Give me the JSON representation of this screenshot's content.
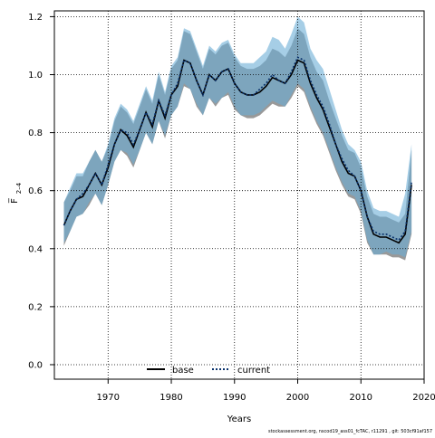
{
  "chart_data": {
    "type": "line",
    "xlabel": "Years",
    "ylabel": "F̅",
    "ylabel_sub": "2–4",
    "xlim": [
      1961.5,
      2020
    ],
    "ylim": [
      -0.05,
      1.22
    ],
    "x_ticks": [
      1970,
      1980,
      1990,
      2000,
      2010,
      2020
    ],
    "y_ticks": [
      0.0,
      0.2,
      0.4,
      0.6,
      0.8,
      1.0,
      1.2
    ],
    "x_tick_labels": [
      "1970",
      "1980",
      "1990",
      "2000",
      "2010",
      "2020"
    ],
    "y_tick_labels": [
      "0.0",
      "0.2",
      "0.4",
      "0.6",
      "0.8",
      "1.0",
      "1.2"
    ],
    "grid": true,
    "legend_position": "bottom-center",
    "footnote": "stockassessment.org, nscod19_ass01_fcTAC, r11291 , git: 503cf91af157",
    "x": [
      1963,
      1964,
      1965,
      1966,
      1967,
      1968,
      1969,
      1970,
      1971,
      1972,
      1973,
      1974,
      1975,
      1976,
      1977,
      1978,
      1979,
      1980,
      1981,
      1982,
      1983,
      1984,
      1985,
      1986,
      1987,
      1988,
      1989,
      1990,
      1991,
      1992,
      1993,
      1994,
      1995,
      1996,
      1997,
      1998,
      1999,
      2000,
      2001,
      2002,
      2003,
      2004,
      2005,
      2006,
      2007,
      2008,
      2009,
      2010,
      2011,
      2012,
      2013,
      2014,
      2015,
      2016,
      2017,
      2018
    ],
    "series": [
      {
        "name": "base",
        "color": "#000000",
        "band_color": "#808080",
        "style": "solid",
        "values": [
          0.48,
          0.53,
          0.57,
          0.58,
          0.62,
          0.66,
          0.62,
          0.68,
          0.76,
          0.81,
          0.79,
          0.75,
          0.81,
          0.87,
          0.82,
          0.91,
          0.85,
          0.93,
          0.96,
          1.05,
          1.04,
          0.98,
          0.93,
          1.0,
          0.98,
          1.01,
          1.02,
          0.97,
          0.94,
          0.93,
          0.93,
          0.94,
          0.96,
          0.99,
          0.98,
          0.97,
          1.0,
          1.05,
          1.04,
          0.97,
          0.92,
          0.88,
          0.82,
          0.76,
          0.7,
          0.66,
          0.65,
          0.6,
          0.51,
          0.45,
          0.44,
          0.44,
          0.43,
          0.42,
          0.45,
          0.62
        ],
        "lower": [
          0.41,
          0.46,
          0.51,
          0.52,
          0.55,
          0.59,
          0.55,
          0.62,
          0.7,
          0.74,
          0.72,
          0.68,
          0.74,
          0.8,
          0.76,
          0.84,
          0.78,
          0.86,
          0.89,
          0.96,
          0.95,
          0.89,
          0.86,
          0.92,
          0.89,
          0.92,
          0.93,
          0.88,
          0.86,
          0.85,
          0.85,
          0.86,
          0.88,
          0.9,
          0.89,
          0.89,
          0.92,
          0.96,
          0.94,
          0.88,
          0.83,
          0.79,
          0.73,
          0.67,
          0.62,
          0.58,
          0.57,
          0.52,
          0.42,
          0.38,
          0.38,
          0.38,
          0.37,
          0.37,
          0.36,
          0.45
        ],
        "upper": [
          0.56,
          0.6,
          0.65,
          0.65,
          0.7,
          0.74,
          0.7,
          0.75,
          0.84,
          0.89,
          0.87,
          0.83,
          0.89,
          0.95,
          0.9,
          1.0,
          0.93,
          1.02,
          1.05,
          1.15,
          1.14,
          1.08,
          1.02,
          1.09,
          1.07,
          1.1,
          1.11,
          1.06,
          1.03,
          1.02,
          1.02,
          1.03,
          1.05,
          1.09,
          1.08,
          1.06,
          1.1,
          1.16,
          1.14,
          1.06,
          1.01,
          0.98,
          0.91,
          0.85,
          0.79,
          0.74,
          0.73,
          0.68,
          0.58,
          0.52,
          0.51,
          0.51,
          0.5,
          0.49,
          0.52,
          0.74
        ]
      },
      {
        "name": "current",
        "color": "#08306b",
        "band_color": "#6baed6",
        "style": "dotted",
        "values": [
          0.48,
          0.53,
          0.57,
          0.59,
          0.62,
          0.66,
          0.62,
          0.69,
          0.76,
          0.81,
          0.8,
          0.76,
          0.81,
          0.87,
          0.83,
          0.91,
          0.86,
          0.93,
          0.97,
          1.05,
          1.04,
          0.98,
          0.93,
          1.0,
          0.98,
          1.01,
          1.02,
          0.97,
          0.94,
          0.93,
          0.93,
          0.95,
          0.97,
          1.0,
          0.98,
          0.97,
          1.01,
          1.06,
          1.05,
          0.98,
          0.93,
          0.89,
          0.83,
          0.76,
          0.71,
          0.67,
          0.65,
          0.6,
          0.51,
          0.46,
          0.45,
          0.45,
          0.44,
          0.43,
          0.46,
          0.63
        ],
        "lower": [
          0.42,
          0.46,
          0.51,
          0.52,
          0.56,
          0.59,
          0.55,
          0.62,
          0.7,
          0.74,
          0.73,
          0.69,
          0.74,
          0.8,
          0.76,
          0.84,
          0.79,
          0.86,
          0.89,
          0.97,
          0.95,
          0.9,
          0.86,
          0.92,
          0.9,
          0.92,
          0.94,
          0.89,
          0.86,
          0.86,
          0.86,
          0.87,
          0.89,
          0.91,
          0.9,
          0.89,
          0.93,
          0.97,
          0.95,
          0.89,
          0.84,
          0.8,
          0.74,
          0.68,
          0.63,
          0.59,
          0.58,
          0.53,
          0.43,
          0.38,
          0.38,
          0.39,
          0.38,
          0.38,
          0.37,
          0.46
        ],
        "upper": [
          0.56,
          0.61,
          0.66,
          0.66,
          0.7,
          0.74,
          0.7,
          0.76,
          0.85,
          0.9,
          0.88,
          0.84,
          0.9,
          0.96,
          0.91,
          1.01,
          0.94,
          1.03,
          1.06,
          1.16,
          1.15,
          1.09,
          1.03,
          1.1,
          1.08,
          1.11,
          1.12,
          1.07,
          1.04,
          1.04,
          1.04,
          1.06,
          1.08,
          1.13,
          1.12,
          1.09,
          1.14,
          1.2,
          1.18,
          1.09,
          1.05,
          1.02,
          0.95,
          0.88,
          0.81,
          0.76,
          0.74,
          0.7,
          0.6,
          0.54,
          0.53,
          0.53,
          0.52,
          0.51,
          0.59,
          0.76
        ]
      }
    ]
  }
}
